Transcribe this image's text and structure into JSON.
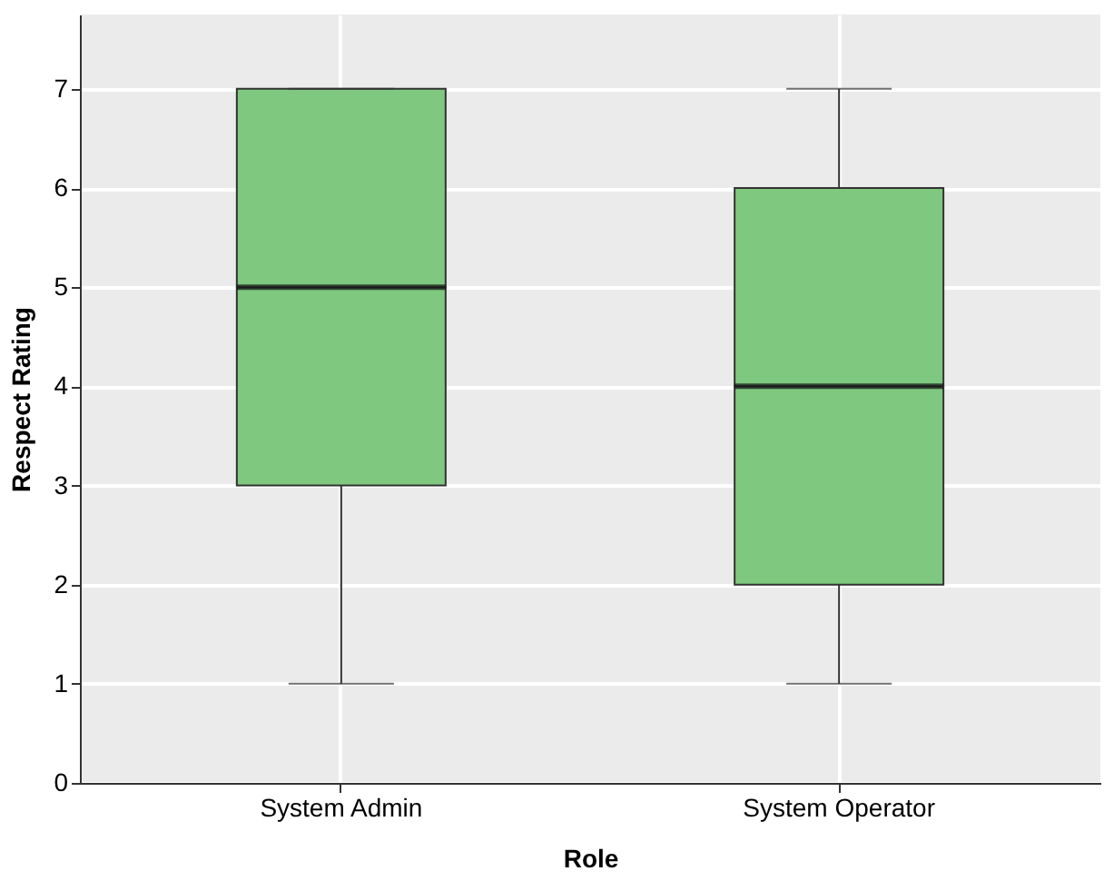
{
  "chart_data": {
    "type": "box",
    "xlabel": "Role",
    "ylabel": "Respect Rating",
    "categories": [
      "System Admin",
      "System Operator"
    ],
    "boxes": [
      {
        "low": 1,
        "q1": 3,
        "median": 5,
        "q3": 7,
        "high": 7
      },
      {
        "low": 1,
        "q1": 2,
        "median": 4,
        "q3": 6,
        "high": 7
      }
    ],
    "color": "#7ec87f",
    "ylim": [
      0,
      7.75
    ],
    "yticks": [
      0,
      1,
      2,
      3,
      4,
      5,
      6,
      7
    ],
    "grid": true
  }
}
